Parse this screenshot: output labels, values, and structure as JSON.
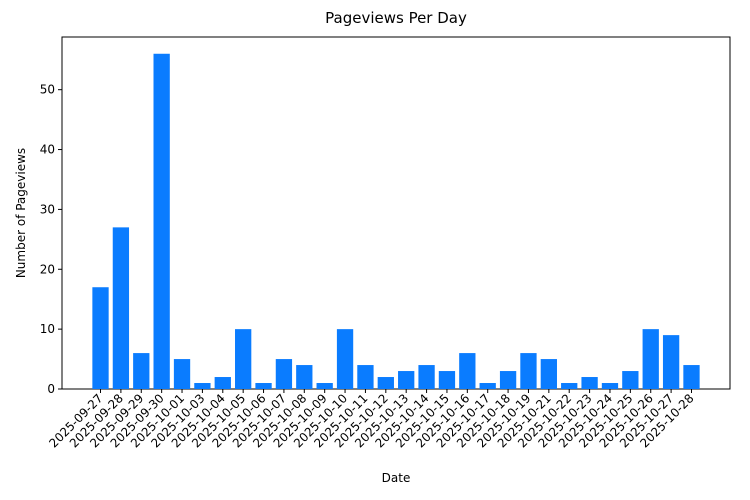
{
  "chart_data": {
    "type": "bar",
    "title": "Pageviews Per Day",
    "x_label": "Date",
    "y_label": "Number of Pageviews",
    "categories": [
      "2025-09-27",
      "2025-09-28",
      "2025-09-29",
      "2025-09-30",
      "2025-10-01",
      "2025-10-03",
      "2025-10-04",
      "2025-10-05",
      "2025-10-06",
      "2025-10-07",
      "2025-10-08",
      "2025-10-09",
      "2025-10-10",
      "2025-10-11",
      "2025-10-12",
      "2025-10-13",
      "2025-10-14",
      "2025-10-15",
      "2025-10-16",
      "2025-10-17",
      "2025-10-18",
      "2025-10-19",
      "2025-10-21",
      "2025-10-22",
      "2025-10-23",
      "2025-10-24",
      "2025-10-25",
      "2025-10-26",
      "2025-10-27",
      "2025-10-28"
    ],
    "values": [
      17,
      27,
      6,
      56,
      5,
      1,
      2,
      10,
      1,
      5,
      4,
      1,
      10,
      4,
      2,
      3,
      4,
      3,
      6,
      1,
      3,
      6,
      5,
      1,
      2,
      1,
      3,
      10,
      9,
      4
    ],
    "color": "#0a7cff",
    "ylim": [
      0,
      58.8
    ],
    "yticks": [
      0,
      10,
      20,
      30,
      40,
      50
    ],
    "grid": false
  }
}
